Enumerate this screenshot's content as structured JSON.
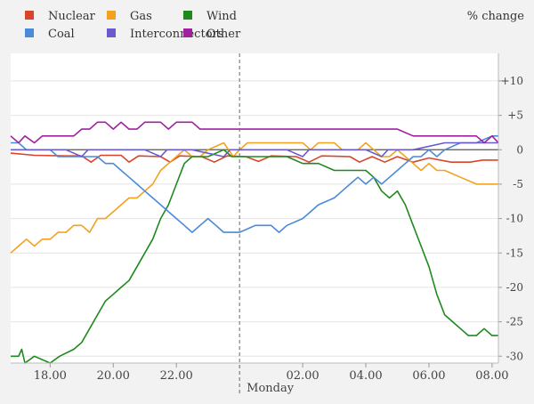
{
  "chart_data": {
    "type": "line",
    "unit_label": "% change",
    "x_unit": "hours",
    "xlim": [
      16.75,
      32.2
    ],
    "ylim": [
      -31,
      14
    ],
    "yticks": [
      10,
      5,
      0,
      -5,
      -10,
      -15,
      -20,
      -25,
      -30
    ],
    "ytick_labels": [
      "+10",
      "+5",
      "0",
      "-5",
      "-10",
      "-15",
      "-20",
      "-25",
      "-30"
    ],
    "xticks": [
      {
        "value": 18,
        "label": "18.00"
      },
      {
        "value": 20,
        "label": "20.00"
      },
      {
        "value": 22,
        "label": "22.00"
      },
      {
        "value": 26,
        "label": "02.00"
      },
      {
        "value": 28,
        "label": "04.00"
      },
      {
        "value": 30,
        "label": "06.00"
      },
      {
        "value": 32,
        "label": "08.00"
      }
    ],
    "midnight": {
      "value": 24,
      "label": "Monday"
    },
    "grid": true,
    "legend_position": "top-left",
    "series": [
      {
        "name": "Nuclear",
        "color": "#d9452a",
        "points": [
          [
            16.75,
            -0.5
          ],
          [
            17.5,
            -0.8
          ],
          [
            18.5,
            -0.9
          ],
          [
            19.0,
            -0.9
          ],
          [
            19.3,
            -1.8
          ],
          [
            19.6,
            -0.8
          ],
          [
            20.25,
            -0.8
          ],
          [
            20.5,
            -1.8
          ],
          [
            20.8,
            -0.9
          ],
          [
            21.5,
            -1.0
          ],
          [
            21.8,
            -1.8
          ],
          [
            22.1,
            -0.9
          ],
          [
            22.8,
            -1.0
          ],
          [
            23.2,
            -1.8
          ],
          [
            23.6,
            -0.9
          ],
          [
            24.2,
            -1.0
          ],
          [
            24.6,
            -1.7
          ],
          [
            25.0,
            -0.9
          ],
          [
            25.8,
            -1.0
          ],
          [
            26.2,
            -1.8
          ],
          [
            26.6,
            -0.9
          ],
          [
            27.5,
            -1.0
          ],
          [
            27.8,
            -1.8
          ],
          [
            28.2,
            -1.0
          ],
          [
            28.6,
            -1.8
          ],
          [
            29.0,
            -1.0
          ],
          [
            29.5,
            -1.8
          ],
          [
            30.0,
            -1.2
          ],
          [
            30.7,
            -1.8
          ],
          [
            31.3,
            -1.8
          ],
          [
            31.7,
            -1.5
          ],
          [
            32.2,
            -1.5
          ]
        ]
      },
      {
        "name": "Gas",
        "color": "#f2a21e",
        "points": [
          [
            16.75,
            -15
          ],
          [
            17.0,
            -14
          ],
          [
            17.25,
            -13
          ],
          [
            17.5,
            -14
          ],
          [
            17.75,
            -13
          ],
          [
            18.0,
            -13
          ],
          [
            18.25,
            -12
          ],
          [
            18.5,
            -12
          ],
          [
            18.75,
            -11
          ],
          [
            19.0,
            -11
          ],
          [
            19.25,
            -12
          ],
          [
            19.5,
            -10
          ],
          [
            19.75,
            -10
          ],
          [
            20.0,
            -9
          ],
          [
            20.25,
            -8
          ],
          [
            20.5,
            -7
          ],
          [
            20.75,
            -7
          ],
          [
            21.0,
            -6
          ],
          [
            21.25,
            -5
          ],
          [
            21.5,
            -3
          ],
          [
            21.75,
            -2
          ],
          [
            22.0,
            -1
          ],
          [
            22.25,
            0
          ],
          [
            22.5,
            -1
          ],
          [
            22.75,
            -1
          ],
          [
            23.0,
            0
          ],
          [
            23.5,
            1
          ],
          [
            23.8,
            -1
          ],
          [
            24.0,
            0
          ],
          [
            24.25,
            1
          ],
          [
            25.0,
            1
          ],
          [
            26.0,
            1
          ],
          [
            26.25,
            0
          ],
          [
            26.5,
            1
          ],
          [
            27.0,
            1
          ],
          [
            27.25,
            0
          ],
          [
            27.75,
            0
          ],
          [
            28.0,
            1
          ],
          [
            28.25,
            0
          ],
          [
            28.5,
            -1
          ],
          [
            28.75,
            -1
          ],
          [
            29.0,
            0
          ],
          [
            29.25,
            -1
          ],
          [
            29.5,
            -2
          ],
          [
            29.75,
            -3
          ],
          [
            30.0,
            -2
          ],
          [
            30.25,
            -3
          ],
          [
            30.5,
            -3
          ],
          [
            31.0,
            -4
          ],
          [
            31.5,
            -5
          ],
          [
            32.2,
            -5
          ]
        ]
      },
      {
        "name": "Wind",
        "color": "#1e8a1e",
        "points": [
          [
            16.75,
            -30
          ],
          [
            17.0,
            -30
          ],
          [
            17.1,
            -29
          ],
          [
            17.2,
            -31
          ],
          [
            17.5,
            -30
          ],
          [
            18.0,
            -31
          ],
          [
            18.3,
            -30
          ],
          [
            18.75,
            -29
          ],
          [
            19.0,
            -28
          ],
          [
            19.25,
            -26
          ],
          [
            19.5,
            -24
          ],
          [
            19.75,
            -22
          ],
          [
            20.0,
            -21
          ],
          [
            20.25,
            -20
          ],
          [
            20.5,
            -19
          ],
          [
            20.75,
            -17
          ],
          [
            21.0,
            -15
          ],
          [
            21.25,
            -13
          ],
          [
            21.5,
            -10
          ],
          [
            21.75,
            -8
          ],
          [
            22.0,
            -5
          ],
          [
            22.25,
            -2
          ],
          [
            22.5,
            -1
          ],
          [
            22.75,
            -1
          ],
          [
            23.0,
            -1
          ],
          [
            23.5,
            0
          ],
          [
            23.75,
            -1
          ],
          [
            24.0,
            -1
          ],
          [
            24.5,
            -1
          ],
          [
            25.0,
            -1
          ],
          [
            25.5,
            -1
          ],
          [
            26.0,
            -2
          ],
          [
            26.5,
            -2
          ],
          [
            27.0,
            -3
          ],
          [
            27.5,
            -3
          ],
          [
            28.0,
            -3
          ],
          [
            28.25,
            -4
          ],
          [
            28.5,
            -6
          ],
          [
            28.75,
            -7
          ],
          [
            29.0,
            -6
          ],
          [
            29.25,
            -8
          ],
          [
            29.5,
            -11
          ],
          [
            29.75,
            -14
          ],
          [
            30.0,
            -17
          ],
          [
            30.25,
            -21
          ],
          [
            30.5,
            -24
          ],
          [
            30.75,
            -25
          ],
          [
            31.0,
            -26
          ],
          [
            31.25,
            -27
          ],
          [
            31.5,
            -27
          ],
          [
            31.75,
            -26
          ],
          [
            32.0,
            -27
          ],
          [
            32.2,
            -27
          ]
        ]
      },
      {
        "name": "Coal",
        "color": "#4a8ad8",
        "points": [
          [
            16.75,
            1
          ],
          [
            17.0,
            1
          ],
          [
            17.25,
            0
          ],
          [
            17.5,
            0
          ],
          [
            18.0,
            0
          ],
          [
            18.25,
            -1
          ],
          [
            18.75,
            -1
          ],
          [
            19.0,
            -1
          ],
          [
            19.5,
            -1
          ],
          [
            19.75,
            -2
          ],
          [
            20.0,
            -2
          ],
          [
            20.25,
            -3
          ],
          [
            20.5,
            -4
          ],
          [
            20.75,
            -5
          ],
          [
            21.0,
            -6
          ],
          [
            21.25,
            -7
          ],
          [
            21.5,
            -8
          ],
          [
            21.75,
            -9
          ],
          [
            22.0,
            -10
          ],
          [
            22.25,
            -11
          ],
          [
            22.5,
            -12
          ],
          [
            22.75,
            -11
          ],
          [
            23.0,
            -10
          ],
          [
            23.25,
            -11
          ],
          [
            23.5,
            -12
          ],
          [
            24.0,
            -12
          ],
          [
            24.5,
            -11
          ],
          [
            25.0,
            -11
          ],
          [
            25.25,
            -12
          ],
          [
            25.5,
            -11
          ],
          [
            26.0,
            -10
          ],
          [
            26.25,
            -9
          ],
          [
            26.5,
            -8
          ],
          [
            27.0,
            -7
          ],
          [
            27.25,
            -6
          ],
          [
            27.5,
            -5
          ],
          [
            27.75,
            -4
          ],
          [
            28.0,
            -5
          ],
          [
            28.25,
            -4
          ],
          [
            28.5,
            -5
          ],
          [
            28.75,
            -4
          ],
          [
            29.0,
            -3
          ],
          [
            29.25,
            -2
          ],
          [
            29.5,
            -1
          ],
          [
            29.75,
            -1
          ],
          [
            30.0,
            0
          ],
          [
            30.25,
            -1
          ],
          [
            30.5,
            0
          ],
          [
            31.0,
            1
          ],
          [
            31.5,
            1
          ],
          [
            32.0,
            2
          ],
          [
            32.2,
            2
          ]
        ]
      },
      {
        "name": "Interconnectors",
        "color": "#6a5acd",
        "points": [
          [
            16.75,
            0
          ],
          [
            17.5,
            0
          ],
          [
            18.5,
            0
          ],
          [
            19.0,
            -1
          ],
          [
            19.2,
            0
          ],
          [
            20.0,
            0
          ],
          [
            21.0,
            0
          ],
          [
            21.5,
            -1
          ],
          [
            21.7,
            0
          ],
          [
            22.5,
            0
          ],
          [
            23.5,
            -1
          ],
          [
            23.7,
            0
          ],
          [
            24.5,
            0
          ],
          [
            25.5,
            0
          ],
          [
            26.0,
            -1
          ],
          [
            26.2,
            0
          ],
          [
            27.0,
            0
          ],
          [
            28.0,
            0
          ],
          [
            28.5,
            -1
          ],
          [
            28.7,
            0
          ],
          [
            29.5,
            0
          ],
          [
            30.5,
            1
          ],
          [
            31.0,
            1
          ],
          [
            31.5,
            1
          ],
          [
            32.0,
            1
          ],
          [
            32.2,
            1
          ]
        ]
      },
      {
        "name": "Other",
        "color": "#a020a0",
        "points": [
          [
            16.75,
            2
          ],
          [
            17.0,
            1
          ],
          [
            17.2,
            2
          ],
          [
            17.5,
            1
          ],
          [
            17.75,
            2
          ],
          [
            18.0,
            2
          ],
          [
            18.5,
            2
          ],
          [
            18.75,
            2
          ],
          [
            19.0,
            3
          ],
          [
            19.25,
            3
          ],
          [
            19.5,
            4
          ],
          [
            19.75,
            4
          ],
          [
            20.0,
            3
          ],
          [
            20.25,
            4
          ],
          [
            20.5,
            3
          ],
          [
            20.75,
            3
          ],
          [
            21.0,
            4
          ],
          [
            21.5,
            4
          ],
          [
            21.75,
            3
          ],
          [
            22.0,
            4
          ],
          [
            22.5,
            4
          ],
          [
            22.75,
            3
          ],
          [
            23.0,
            3
          ],
          [
            23.5,
            3
          ],
          [
            24.0,
            3
          ],
          [
            24.5,
            3
          ],
          [
            25.0,
            3
          ],
          [
            25.5,
            3
          ],
          [
            26.0,
            3
          ],
          [
            26.5,
            3
          ],
          [
            27.0,
            3
          ],
          [
            27.5,
            3
          ],
          [
            28.0,
            3
          ],
          [
            28.5,
            3
          ],
          [
            29.0,
            3
          ],
          [
            29.5,
            2
          ],
          [
            30.0,
            2
          ],
          [
            30.5,
            2
          ],
          [
            31.0,
            2
          ],
          [
            31.5,
            2
          ],
          [
            31.75,
            1
          ],
          [
            32.0,
            2
          ],
          [
            32.2,
            1
          ]
        ]
      }
    ]
  }
}
